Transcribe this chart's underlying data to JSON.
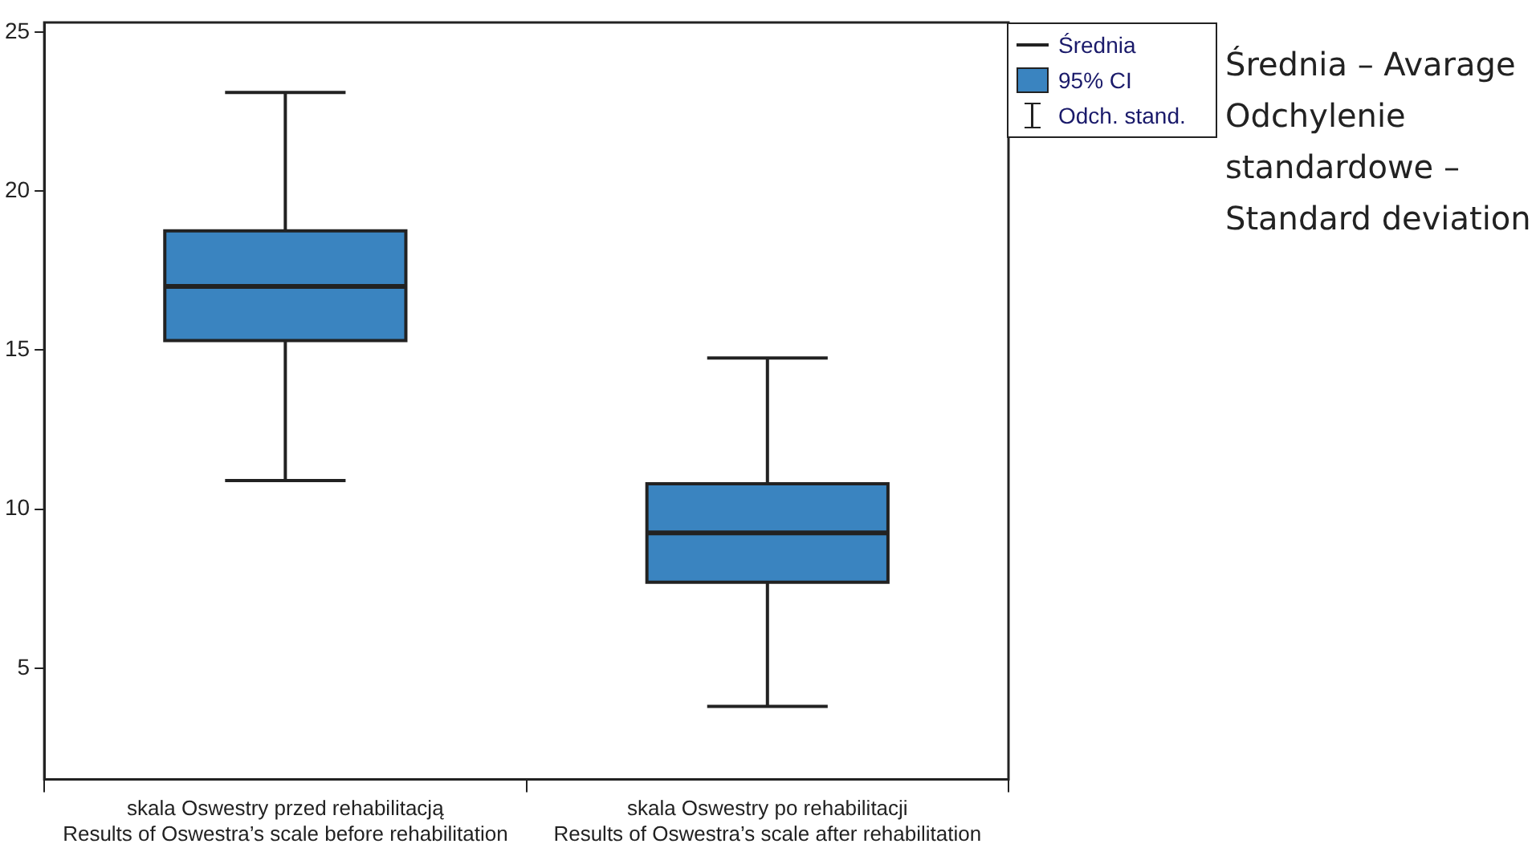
{
  "chart_data": {
    "type": "box",
    "categories": [
      "skala Oswestry przed rehabilitacją\nResults of Oswestra’s scale before rehabilitation",
      "skala Oswestry po rehabilitacji\nResults of Oswestra’s scale after rehabilitation"
    ],
    "series": [
      {
        "name": "95% CI",
        "color": "#3a84c0",
        "boxes": [
          {
            "low": 10.9,
            "q1": 15.3,
            "median": 17.0,
            "q3": 18.75,
            "high": 23.1
          },
          {
            "low": 3.8,
            "q1": 7.7,
            "median": 9.25,
            "q3": 10.8,
            "high": 14.75
          }
        ]
      }
    ],
    "ylim": [
      1.5,
      25.3
    ],
    "yticks": [
      5,
      10,
      15,
      20,
      25
    ],
    "grid": false,
    "legend": "top right",
    "annotations": [
      "Średnia",
      "Odch. stand.",
      "Średnia – Avarage\nOdchylenie\nstandardowe –\nStandard deviation"
    ]
  }
}
